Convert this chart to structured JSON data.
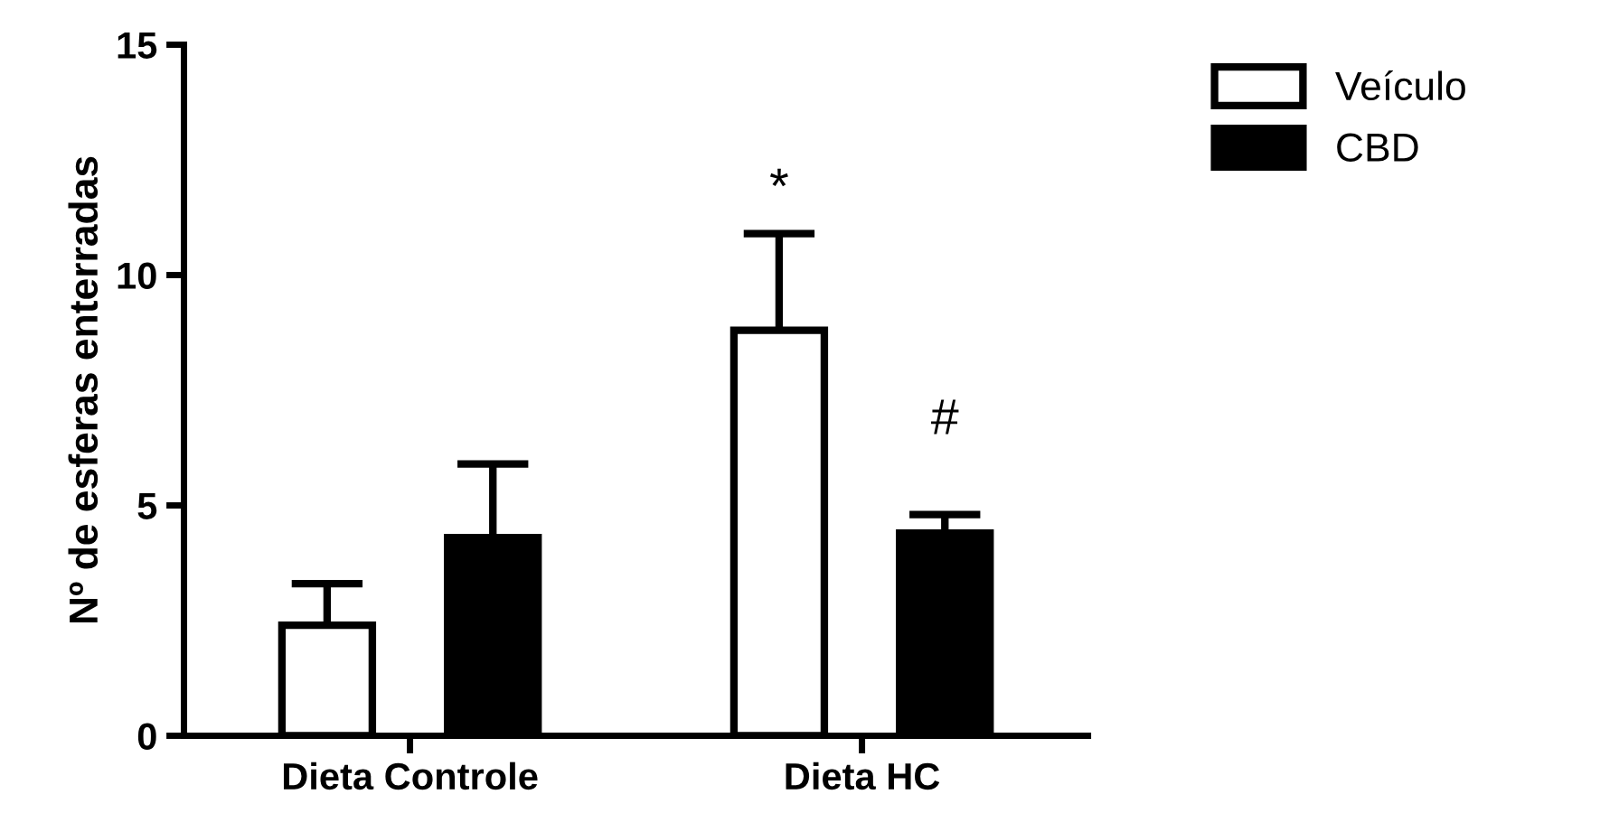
{
  "chart_data": {
    "type": "bar",
    "ylabel": "Nº de esferas enterradas",
    "categories": [
      "Dieta Controle",
      "Dieta HC"
    ],
    "series": [
      {
        "name": "Veículo",
        "color": "#ffffff",
        "values": [
          2.4,
          8.8
        ],
        "errors": [
          [
            2.4,
            3.3
          ],
          [
            8.8,
            10.9
          ]
        ]
      },
      {
        "name": "CBD",
        "color": "#000000",
        "values": [
          4.3,
          4.4
        ],
        "errors": [
          [
            4.3,
            5.9
          ],
          [
            4.4,
            4.8
          ]
        ]
      }
    ],
    "annotations": [
      "*",
      "#"
    ],
    "ylim": [
      0,
      15
    ],
    "yticks": [
      0,
      5,
      10,
      15
    ],
    "grid": false,
    "legend": "top right"
  }
}
